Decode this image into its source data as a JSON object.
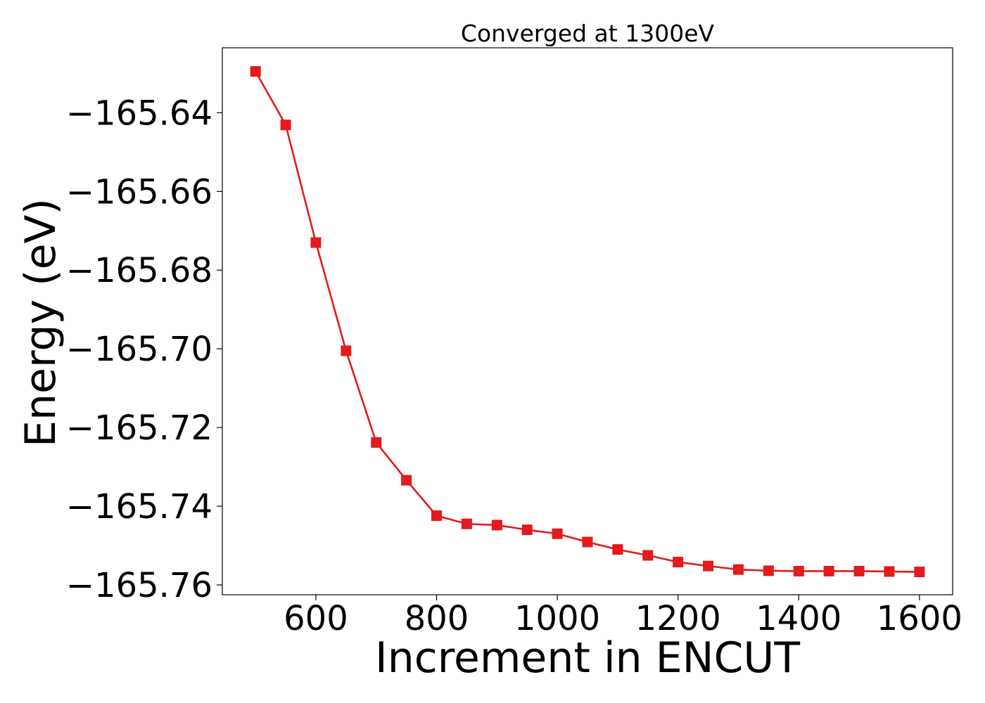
{
  "chart_data": {
    "type": "line",
    "title": "Converged at 1300eV",
    "xlabel": "Increment in ENCUT",
    "ylabel": "Energy (eV)",
    "xlim": [
      445,
      1655
    ],
    "ylim": [
      -165.7625,
      -165.6235
    ],
    "xticks": [
      600,
      800,
      1000,
      1200,
      1400,
      1600
    ],
    "yticks": [
      -165.64,
      -165.66,
      -165.68,
      -165.7,
      -165.72,
      -165.74,
      -165.76
    ],
    "ytick_labels": [
      "−165.64",
      "−165.66",
      "−165.68",
      "−165.70",
      "−165.72",
      "−165.74",
      "−165.76"
    ],
    "grid": false,
    "legend": "none",
    "marker": "square",
    "series": [
      {
        "color": "#e41a1c",
        "x": [
          500,
          550,
          600,
          650,
          700,
          750,
          800,
          850,
          900,
          950,
          1000,
          1050,
          1100,
          1150,
          1200,
          1250,
          1300,
          1350,
          1400,
          1450,
          1500,
          1550,
          1600
        ],
        "y": [
          -165.6295,
          -165.6431,
          -165.673,
          -165.7005,
          -165.7238,
          -165.7334,
          -165.7424,
          -165.7445,
          -165.7448,
          -165.746,
          -165.747,
          -165.7491,
          -165.751,
          -165.7525,
          -165.7542,
          -165.7552,
          -165.7561,
          -165.7564,
          -165.7565,
          -165.7565,
          -165.7565,
          -165.7566,
          -165.7567
        ]
      }
    ]
  }
}
